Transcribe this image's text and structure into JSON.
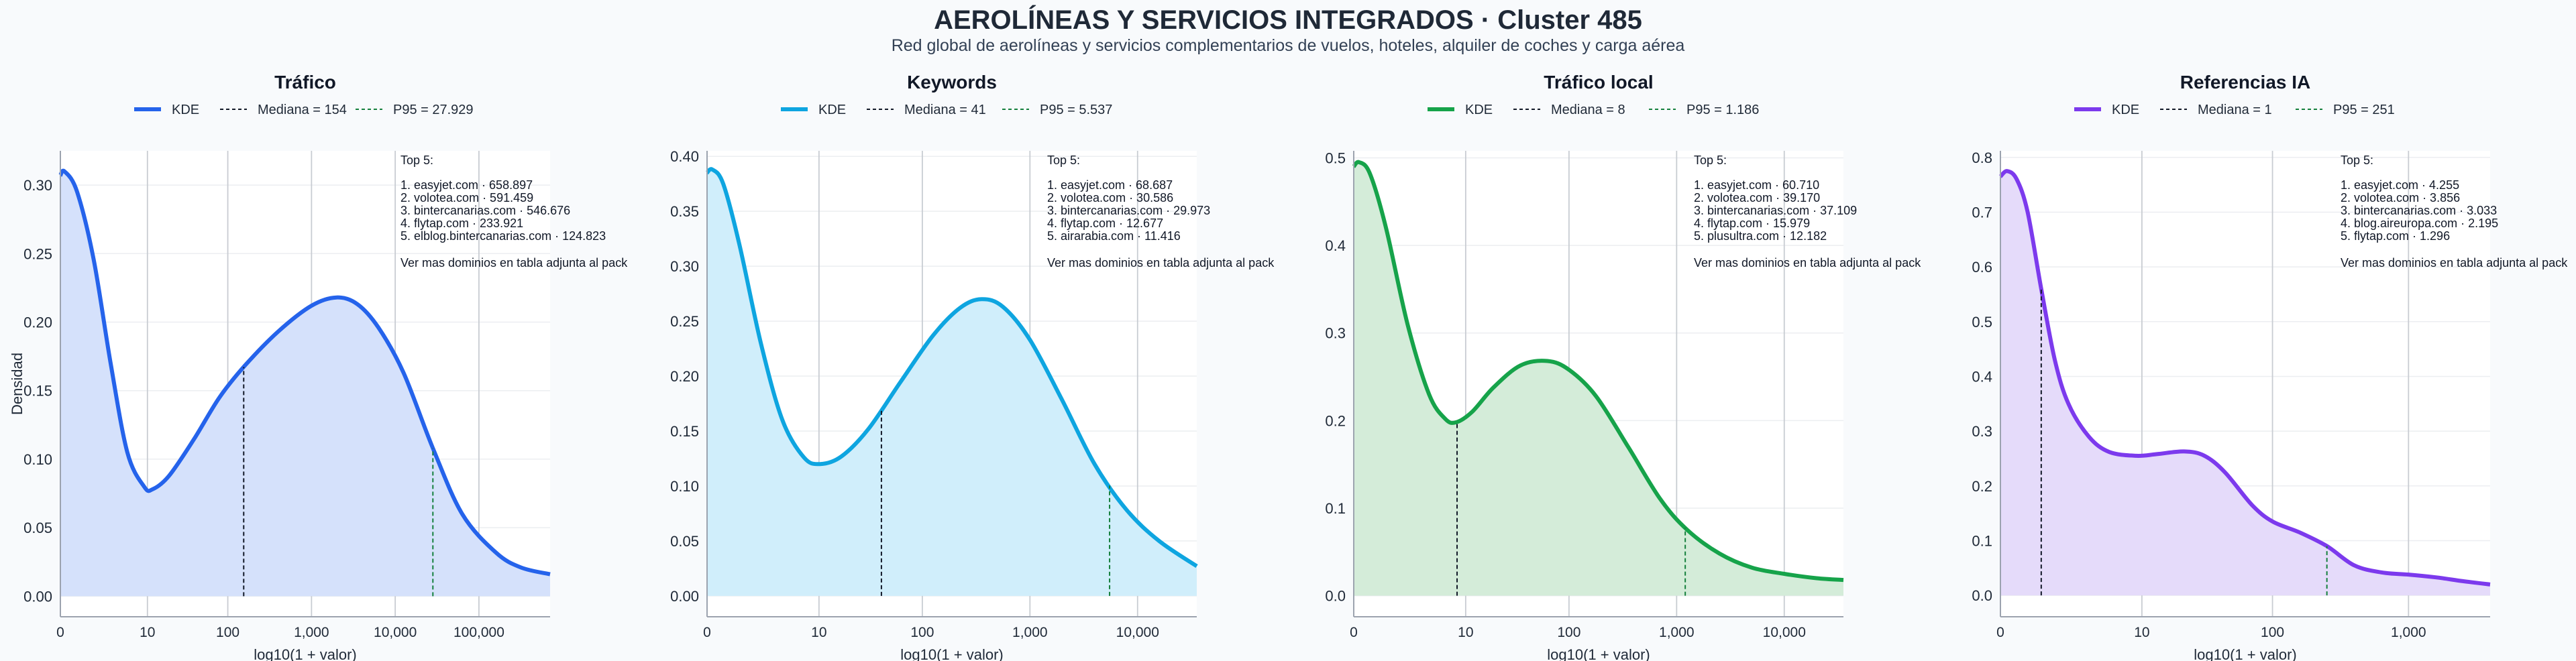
{
  "header": {
    "title": "AEROLÍNEAS Y SERVICIOS INTEGRADOS · Cluster 485",
    "subtitle": "Red global de aerolíneas y servicios complementarios de vuelos, hoteles, alquiler de coches y carga aérea"
  },
  "colors": {
    "grid": "#c8ccd2",
    "axis": "#9ca3af",
    "median_line": "#111827",
    "p95_line": "#15803d"
  },
  "chart_data": [
    {
      "type": "area",
      "title": "Tráfico",
      "color": "#2563eb",
      "fill": "#d5e1fb",
      "xlabel": "log10(1 + valor)",
      "ylabel": "Densidad",
      "xlim": [
        0,
        5.85
      ],
      "ylim": [
        -0.015,
        0.325
      ],
      "xticks": [
        {
          "v": 0,
          "label": "0"
        },
        {
          "v": 1.04,
          "label": "10"
        },
        {
          "v": 2.0,
          "label": "100"
        },
        {
          "v": 3.0,
          "label": "1,000"
        },
        {
          "v": 4.0,
          "label": "10,000"
        },
        {
          "v": 5.0,
          "label": "100,000"
        }
      ],
      "yticks": [
        {
          "v": 0.0,
          "label": "0.00"
        },
        {
          "v": 0.05,
          "label": "0.05"
        },
        {
          "v": 0.1,
          "label": "0.10"
        },
        {
          "v": 0.15,
          "label": "0.15"
        },
        {
          "v": 0.2,
          "label": "0.20"
        },
        {
          "v": 0.25,
          "label": "0.25"
        },
        {
          "v": 0.3,
          "label": "0.30"
        }
      ],
      "legend": [
        "KDE",
        "Mediana = 154",
        "P95 = 27.929"
      ],
      "median": 2.19,
      "p95": 4.45,
      "curve": [
        [
          0,
          0.307
        ],
        [
          0.05,
          0.31
        ],
        [
          0.2,
          0.295
        ],
        [
          0.4,
          0.245
        ],
        [
          0.6,
          0.17
        ],
        [
          0.8,
          0.105
        ],
        [
          1.0,
          0.08
        ],
        [
          1.1,
          0.078
        ],
        [
          1.3,
          0.088
        ],
        [
          1.6,
          0.115
        ],
        [
          1.9,
          0.145
        ],
        [
          2.2,
          0.168
        ],
        [
          2.6,
          0.193
        ],
        [
          3.0,
          0.212
        ],
        [
          3.3,
          0.218
        ],
        [
          3.55,
          0.213
        ],
        [
          3.8,
          0.196
        ],
        [
          4.1,
          0.163
        ],
        [
          4.45,
          0.108
        ],
        [
          4.8,
          0.06
        ],
        [
          5.2,
          0.032
        ],
        [
          5.5,
          0.021
        ],
        [
          5.85,
          0.016
        ]
      ],
      "annotation": {
        "heading": "Top 5:",
        "items": [
          "1. easyjet.com · 658.897",
          "2. volotea.com · 591.459",
          "3. bintercanarias.com · 546.676",
          "4. flytap.com · 233.921",
          "5. elblog.bintercanarias.com · 124.823"
        ],
        "footer": "Ver mas dominios en tabla adjunta al pack"
      }
    },
    {
      "type": "area",
      "title": "Keywords",
      "color": "#0ea5e0",
      "fill": "#d0eefb",
      "xlabel": "log10(1 + valor)",
      "ylabel": "",
      "xlim": [
        0,
        4.55
      ],
      "ylim": [
        -0.019,
        0.405
      ],
      "xticks": [
        {
          "v": 0,
          "label": "0"
        },
        {
          "v": 1.04,
          "label": "10"
        },
        {
          "v": 2.0,
          "label": "100"
        },
        {
          "v": 3.0,
          "label": "1,000"
        },
        {
          "v": 4.0,
          "label": "10,000"
        }
      ],
      "yticks": [
        {
          "v": 0.0,
          "label": "0.00"
        },
        {
          "v": 0.05,
          "label": "0.05"
        },
        {
          "v": 0.1,
          "label": "0.10"
        },
        {
          "v": 0.15,
          "label": "0.15"
        },
        {
          "v": 0.2,
          "label": "0.20"
        },
        {
          "v": 0.25,
          "label": "0.25"
        },
        {
          "v": 0.3,
          "label": "0.30"
        },
        {
          "v": 0.35,
          "label": "0.35"
        },
        {
          "v": 0.4,
          "label": "0.40"
        }
      ],
      "legend": [
        "KDE",
        "Mediana = 41",
        "P95 = 5.537"
      ],
      "median": 1.62,
      "p95": 3.74,
      "curve": [
        [
          0,
          0.385
        ],
        [
          0.05,
          0.388
        ],
        [
          0.15,
          0.375
        ],
        [
          0.3,
          0.32
        ],
        [
          0.5,
          0.23
        ],
        [
          0.7,
          0.16
        ],
        [
          0.9,
          0.126
        ],
        [
          1.05,
          0.12
        ],
        [
          1.25,
          0.127
        ],
        [
          1.5,
          0.152
        ],
        [
          1.8,
          0.195
        ],
        [
          2.1,
          0.237
        ],
        [
          2.35,
          0.262
        ],
        [
          2.55,
          0.27
        ],
        [
          2.75,
          0.263
        ],
        [
          3.0,
          0.233
        ],
        [
          3.3,
          0.178
        ],
        [
          3.6,
          0.12
        ],
        [
          3.9,
          0.078
        ],
        [
          4.2,
          0.05
        ],
        [
          4.55,
          0.027
        ]
      ],
      "annotation": {
        "heading": "Top 5:",
        "items": [
          "1. easyjet.com · 68.687",
          "2. volotea.com · 30.586",
          "3. bintercanarias.com · 29.973",
          "4. flytap.com · 12.677",
          "5. airarabia.com · 11.416"
        ],
        "footer": "Ver mas dominios en tabla adjunta al pack"
      }
    },
    {
      "type": "area",
      "title": "Tráfico local",
      "color": "#16a34a",
      "fill": "#d4ecd9",
      "xlabel": "log10(1 + valor)",
      "ylabel": "",
      "xlim": [
        0,
        4.55
      ],
      "ylim": [
        -0.024,
        0.508
      ],
      "xticks": [
        {
          "v": 0,
          "label": "0"
        },
        {
          "v": 1.04,
          "label": "10"
        },
        {
          "v": 2.0,
          "label": "100"
        },
        {
          "v": 3.0,
          "label": "1,000"
        },
        {
          "v": 4.0,
          "label": "10,000"
        }
      ],
      "yticks": [
        {
          "v": 0.0,
          "label": "0.0"
        },
        {
          "v": 0.1,
          "label": "0.1"
        },
        {
          "v": 0.2,
          "label": "0.2"
        },
        {
          "v": 0.3,
          "label": "0.3"
        },
        {
          "v": 0.4,
          "label": "0.4"
        },
        {
          "v": 0.5,
          "label": "0.5"
        }
      ],
      "legend": [
        "KDE",
        "Mediana = 8",
        "P95 = 1.186"
      ],
      "median": 0.96,
      "p95": 3.08,
      "curve": [
        [
          0,
          0.49
        ],
        [
          0.05,
          0.495
        ],
        [
          0.15,
          0.482
        ],
        [
          0.3,
          0.42
        ],
        [
          0.5,
          0.31
        ],
        [
          0.7,
          0.23
        ],
        [
          0.85,
          0.202
        ],
        [
          0.95,
          0.198
        ],
        [
          1.1,
          0.21
        ],
        [
          1.3,
          0.238
        ],
        [
          1.55,
          0.263
        ],
        [
          1.8,
          0.268
        ],
        [
          2.0,
          0.258
        ],
        [
          2.25,
          0.228
        ],
        [
          2.55,
          0.17
        ],
        [
          2.85,
          0.11
        ],
        [
          3.1,
          0.075
        ],
        [
          3.4,
          0.048
        ],
        [
          3.7,
          0.032
        ],
        [
          4.0,
          0.025
        ],
        [
          4.3,
          0.02
        ],
        [
          4.55,
          0.018
        ]
      ],
      "annotation": {
        "heading": "Top 5:",
        "items": [
          "1. easyjet.com · 60.710",
          "2. volotea.com · 39.170",
          "3. bintercanarias.com · 37.109",
          "4. flytap.com · 15.979",
          "5. plusultra.com · 12.182"
        ],
        "footer": "Ver mas dominios en tabla adjunta al pack"
      }
    },
    {
      "type": "area",
      "title": "Referencias IA",
      "color": "#7c3aed",
      "fill": "#e5dbfa",
      "xlabel": "log10(1 + valor)",
      "ylabel": "",
      "xlim": [
        0,
        3.6
      ],
      "ylim": [
        -0.039,
        0.812
      ],
      "xticks": [
        {
          "v": 0,
          "label": "0"
        },
        {
          "v": 1.04,
          "label": "10"
        },
        {
          "v": 2.0,
          "label": "100"
        },
        {
          "v": 3.0,
          "label": "1,000"
        }
      ],
      "yticks": [
        {
          "v": 0.0,
          "label": "0.0"
        },
        {
          "v": 0.1,
          "label": "0.1"
        },
        {
          "v": 0.2,
          "label": "0.2"
        },
        {
          "v": 0.3,
          "label": "0.3"
        },
        {
          "v": 0.4,
          "label": "0.4"
        },
        {
          "v": 0.5,
          "label": "0.5"
        },
        {
          "v": 0.6,
          "label": "0.6"
        },
        {
          "v": 0.7,
          "label": "0.7"
        },
        {
          "v": 0.8,
          "label": "0.8"
        }
      ],
      "legend": [
        "KDE",
        "Mediana = 1",
        "P95 = 251"
      ],
      "median": 0.3,
      "p95": 2.4,
      "curve": [
        [
          0,
          0.765
        ],
        [
          0.05,
          0.775
        ],
        [
          0.12,
          0.76
        ],
        [
          0.2,
          0.7
        ],
        [
          0.3,
          0.56
        ],
        [
          0.4,
          0.43
        ],
        [
          0.5,
          0.35
        ],
        [
          0.65,
          0.29
        ],
        [
          0.8,
          0.262
        ],
        [
          1.0,
          0.255
        ],
        [
          1.15,
          0.258
        ],
        [
          1.35,
          0.263
        ],
        [
          1.5,
          0.255
        ],
        [
          1.65,
          0.225
        ],
        [
          1.85,
          0.165
        ],
        [
          2.0,
          0.135
        ],
        [
          2.2,
          0.115
        ],
        [
          2.4,
          0.09
        ],
        [
          2.6,
          0.055
        ],
        [
          2.8,
          0.042
        ],
        [
          3.0,
          0.038
        ],
        [
          3.2,
          0.033
        ],
        [
          3.4,
          0.026
        ],
        [
          3.6,
          0.02
        ]
      ],
      "annotation": {
        "heading": "Top 5:",
        "items": [
          "1. easyjet.com · 4.255",
          "2. volotea.com · 3.856",
          "3. bintercanarias.com · 3.033",
          "4. blog.aireuropa.com · 2.195",
          "5. flytap.com · 1.296"
        ],
        "footer": "Ver mas dominios en tabla adjunta al pack"
      }
    }
  ]
}
